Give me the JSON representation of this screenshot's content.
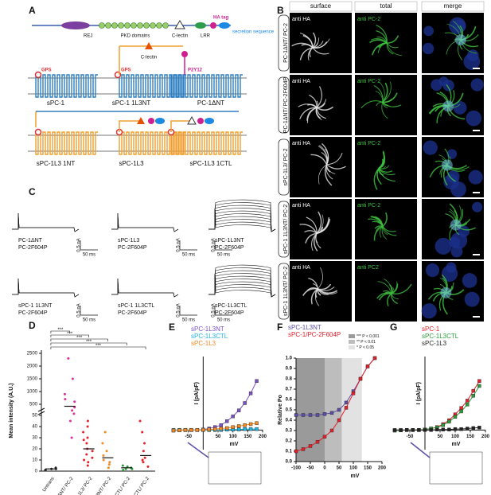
{
  "panel_a": {
    "label": "A",
    "domains": [
      "REJ",
      "PKD domains",
      "C-lectin",
      "LRR"
    ],
    "ha_tag": "HA tag",
    "secretion": "secretion sequence",
    "sites": [
      "GPS",
      "GPS",
      "P2Y12"
    ],
    "insert": "C-lectin",
    "constructs_top": [
      "sPC-1",
      "sPC-1 1L3NT",
      "PC-1ΔNT"
    ],
    "constructs_bottom": [
      "sPC-1L3 1NT",
      "sPC-1L3",
      "sPC-1L3 1CTL"
    ]
  },
  "panel_b": {
    "label": "B",
    "headers": [
      "surface",
      "total",
      "merge"
    ],
    "rows": [
      {
        "name": "PC-1ΔNT/ PC-2",
        "surface": "anti HA",
        "total": "anti PC-2"
      },
      {
        "name": "PC-1ΔNT/ PC-2F604P",
        "surface": "anti HA",
        "total": "anti PC-2"
      },
      {
        "name": "sPC-1L3/ PC-2",
        "surface": "anti HA",
        "total": "anti PC-2"
      },
      {
        "name": "sPC-1 1L3NT/ PC-2",
        "surface": "anti HA",
        "total": "anti PC-2"
      },
      {
        "name": "sPC-1 1L3NT/ PC-2",
        "surface": "anti HA",
        "total": "anti PC2"
      }
    ]
  },
  "panel_c": {
    "label": "C",
    "traces": [
      {
        "line1": "PC-1ΔNT",
        "line2": "PC-2F604P",
        "time": "50 ms",
        "current": "0.5 nA"
      },
      {
        "line1": "sPC-1L3",
        "line2": "PC-2F604P",
        "time": "50 ms",
        "current": "0.5 nA"
      },
      {
        "line1": "sPC-1L3NT",
        "line2": "PC-2F604P",
        "time": "50 ms",
        "current": "0.5 nA"
      },
      {
        "line1": "sPC-1 1L3NT",
        "line2": "PC-2F604P",
        "time": "50 ms",
        "current": "0.5 nA"
      },
      {
        "line1": "sPC-1 1L3CTL",
        "line2": "PC-2F604P",
        "time": "50 ms",
        "current": "0.5 nA"
      },
      {
        "line1": "sPC-1L3CTL",
        "line2": "PC-2F604P",
        "time": "50 ms",
        "current": "0.5 nA"
      }
    ]
  },
  "panel_d": {
    "label": "D",
    "chart_data": {
      "type": "scatter",
      "y_label": "Mean intensity (A.U.)",
      "categories": [
        "Untrans",
        "PC-1ΔNT/ PC-2",
        "sPC-1L3/ PC-2",
        "sPC-1L3NT/ PC-2",
        "sPC-1L3CTL/ PC-2",
        "sPC-1 1L3CTL/ PC-2"
      ],
      "colors": [
        "#222222",
        "#e0309a",
        "#e8202a",
        "#f08a24",
        "#2a9d3a",
        "#e8202a"
      ],
      "means": [
        2,
        420,
        20,
        12,
        3,
        14
      ],
      "points": [
        [
          1,
          2,
          3,
          1,
          2
        ],
        [
          30,
          45,
          120,
          380,
          600,
          900,
          1500,
          2300,
          250,
          700
        ],
        [
          5,
          10,
          15,
          20,
          25,
          30,
          35,
          40,
          45,
          12,
          18,
          28,
          8
        ],
        [
          3,
          6,
          10,
          14,
          18,
          25,
          35,
          8
        ],
        [
          1,
          2,
          3,
          4,
          5,
          2
        ],
        [
          4,
          8,
          12,
          18,
          25,
          35,
          45,
          10
        ]
      ],
      "yticks_low": [
        0,
        10,
        20,
        30,
        40,
        50
      ],
      "yticks_high": [
        500,
        1000,
        1500,
        2000,
        2500
      ],
      "significance": [
        "***",
        "***",
        "***",
        "***",
        "***"
      ]
    }
  },
  "panel_e": {
    "label": "E",
    "chart_data": {
      "type": "line",
      "x_label": "mV",
      "y_label": "I (pA/pF)",
      "x": [
        -100,
        -80,
        -60,
        -40,
        -20,
        0,
        20,
        40,
        60,
        80,
        100,
        120,
        140,
        160,
        180
      ],
      "xlim": [
        -100,
        200
      ],
      "ylim": [
        -40,
        150
      ],
      "xticks": [
        -50,
        50,
        100,
        150,
        200
      ],
      "series": [
        {
          "name": "sPC-1L3NT",
          "color": "#7b52c4",
          "values": [
            -1,
            -0.5,
            0,
            0,
            0,
            1,
            3,
            6,
            10,
            18,
            28,
            40,
            55,
            75,
            100
          ]
        },
        {
          "name": "sPC-1L3CTL",
          "color": "#1fb3e0",
          "values": [
            0,
            0,
            0,
            0,
            0,
            0,
            0,
            0,
            0,
            1,
            1,
            1,
            2,
            2,
            2
          ]
        },
        {
          "name": "sPC-1L3",
          "color": "#f08a24",
          "values": [
            -1,
            -0.5,
            0,
            0,
            0,
            0.5,
            1,
            2,
            3,
            4,
            6,
            8,
            10,
            12,
            14
          ]
        }
      ]
    }
  },
  "panel_f": {
    "label": "F",
    "chart_data": {
      "type": "line",
      "x_label": "mV",
      "y_label": "Relative Po",
      "x": [
        -100,
        -75,
        -50,
        -25,
        0,
        25,
        50,
        75,
        100,
        125,
        150,
        175
      ],
      "xlim": [
        -100,
        200
      ],
      "ylim": [
        0,
        1
      ],
      "xticks": [
        -100,
        -50,
        0,
        50,
        100,
        150,
        200
      ],
      "yticks": [
        {
          "value": 0,
          "label": "0.0"
        },
        {
          "value": 0.1,
          "label": "0.1"
        },
        {
          "value": 0.2,
          "label": "0.2"
        },
        {
          "value": 0.3,
          "label": "0.3"
        },
        {
          "value": 0.4,
          "label": "0.4"
        },
        {
          "value": 0.5,
          "label": "0.5"
        },
        {
          "value": 0.6,
          "label": "0.6"
        },
        {
          "value": 0.7,
          "label": "0.7"
        },
        {
          "value": 0.8,
          "label": "0.8"
        },
        {
          "value": 0.9,
          "label": "0.9"
        },
        {
          "value": 1,
          "label": "1.0"
        }
      ],
      "bands": [
        {
          "label": "*** P < 0.001",
          "from": -100,
          "to": 0,
          "color": "#9a9a9a"
        },
        {
          "label": "** P < 0.01",
          "from": 0,
          "to": 60,
          "color": "#bdbdbd"
        },
        {
          "label": "* P < 0.05",
          "from": 60,
          "to": 130,
          "color": "#e2e2e2"
        }
      ],
      "series": [
        {
          "name": "sPC-1L3NT",
          "color": "#5b4fa8",
          "values": [
            0.45,
            0.45,
            0.45,
            0.45,
            0.46,
            0.47,
            0.5,
            0.57,
            0.68,
            0.8,
            0.92,
            1.0
          ]
        },
        {
          "name": "sPC-1/PC-2F604P",
          "color": "#e8202a",
          "values": [
            0.1,
            0.12,
            0.15,
            0.19,
            0.24,
            0.3,
            0.4,
            0.52,
            0.66,
            0.8,
            0.92,
            1.0
          ]
        }
      ]
    }
  },
  "panel_g": {
    "label": "G",
    "chart_data": {
      "type": "line",
      "x_label": "mV",
      "y_label": "I (pA/pF)",
      "x": [
        -100,
        -80,
        -60,
        -40,
        -20,
        0,
        20,
        40,
        60,
        80,
        100,
        120,
        140,
        160,
        180
      ],
      "xlim": [
        -100,
        200
      ],
      "ylim": [
        -40,
        150
      ],
      "xticks": [
        -50,
        50,
        100,
        150,
        200
      ],
      "series": [
        {
          "name": "sPC-1",
          "color": "#e8202a",
          "values": [
            -1,
            -0.5,
            0,
            0,
            0,
            1,
            3,
            6,
            12,
            20,
            32,
            45,
            60,
            80,
            100
          ]
        },
        {
          "name": "sPC-1L3CTL",
          "color": "#2a9d3a",
          "values": [
            -1,
            -0.5,
            0,
            0,
            0,
            1,
            3,
            5,
            10,
            17,
            27,
            38,
            52,
            70,
            90
          ]
        },
        {
          "name": "sPC-1L3",
          "color": "#222222",
          "values": [
            0,
            0,
            0,
            0,
            0,
            0,
            0,
            1,
            1,
            1,
            2,
            2,
            3,
            4,
            5
          ]
        }
      ]
    }
  }
}
